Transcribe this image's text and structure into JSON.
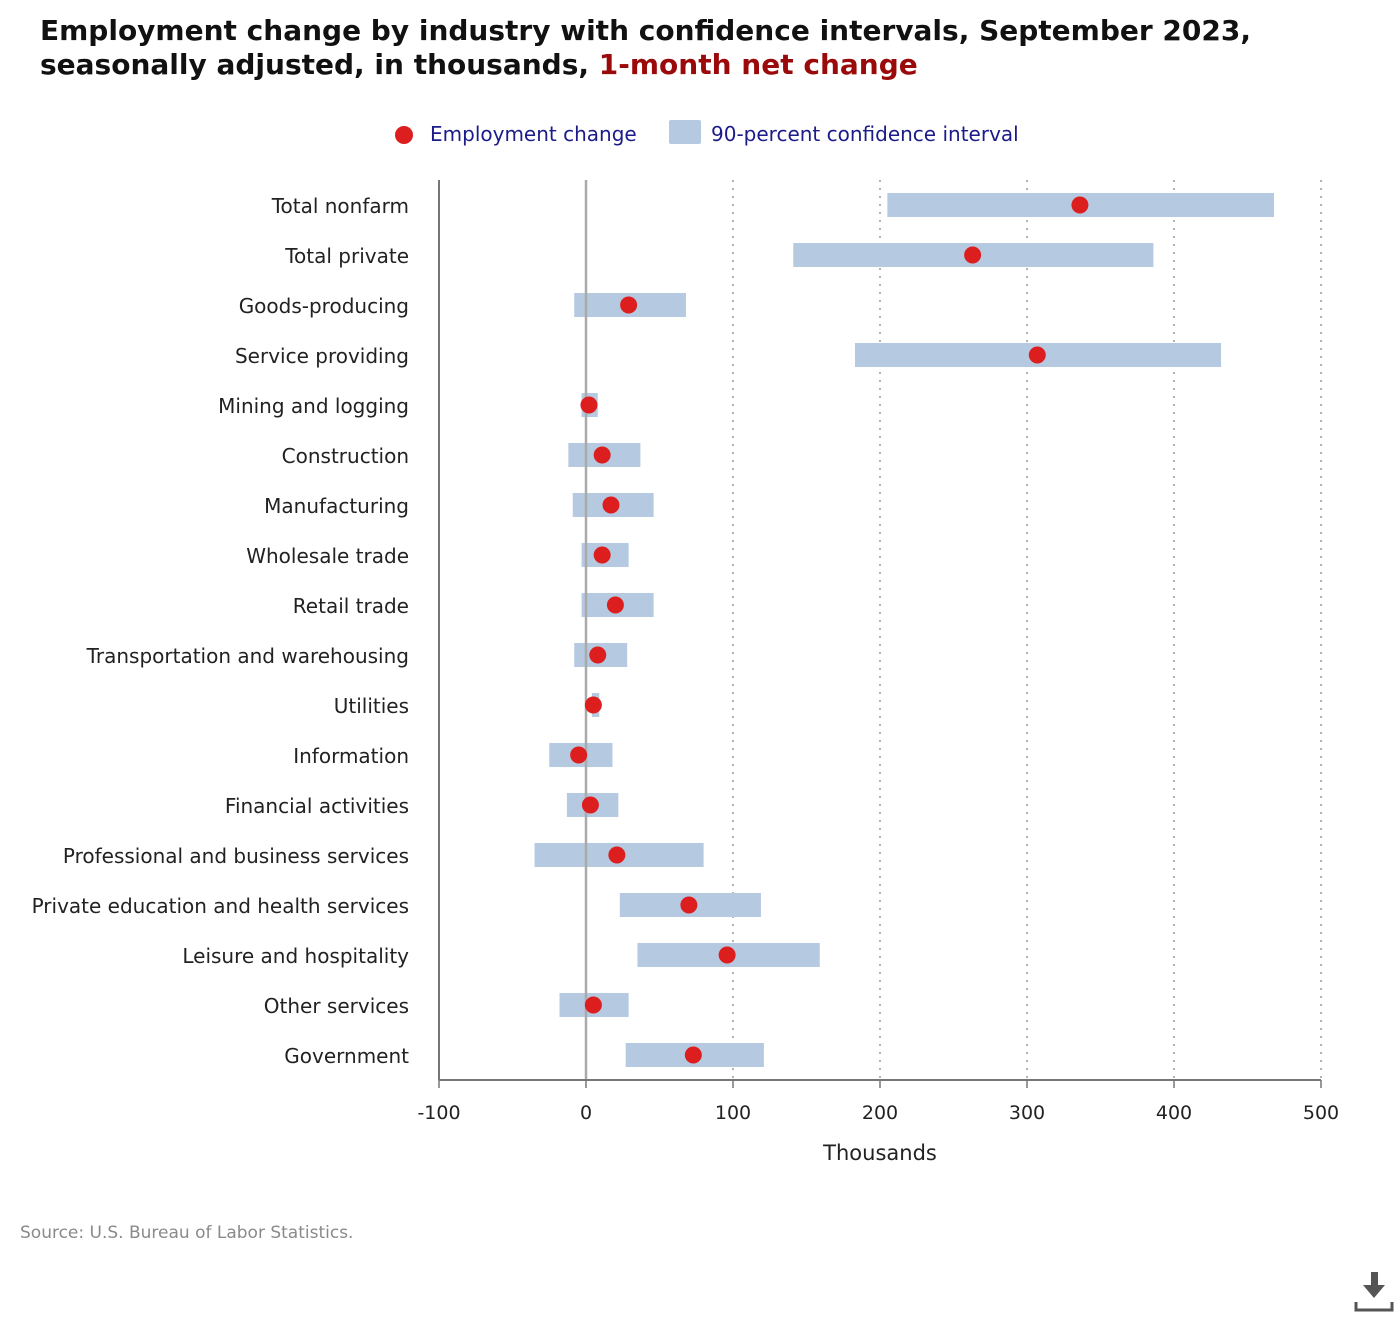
{
  "title": {
    "main": "Employment change by industry with confidence intervals, September 2023, seasonally adjusted, in thousands, ",
    "accent": "1-month net change"
  },
  "legend": {
    "point_label": "Employment change",
    "interval_label": "90-percent confidence interval"
  },
  "source": "Source: U.S. Bureau of Labor Statistics.",
  "colors": {
    "point": "#dd1e1e",
    "interval": "#b5c9e0",
    "accent": "#9b0a0a",
    "legend_text": "#1b1b8a"
  },
  "chart_data": {
    "type": "scatter",
    "title": "Employment change by industry with confidence intervals, September 2023, seasonally adjusted, in thousands, 1-month net change",
    "xlabel": "Thousands",
    "ylabel": "",
    "xlim": [
      -100,
      500
    ],
    "xticks": [
      "-100",
      "0",
      "100",
      "200",
      "300",
      "400",
      "500"
    ],
    "grid": "vertical dotted",
    "legend_position": "top-center",
    "categories": [
      "Total nonfarm",
      "Total private",
      "Goods-producing",
      "Service providing",
      "Mining and logging",
      "Construction",
      "Manufacturing",
      "Wholesale trade",
      "Retail trade",
      "Transportation and warehousing",
      "Utilities",
      "Information",
      "Financial activities",
      "Professional and business services",
      "Private education and health services",
      "Leisure and hospitality",
      "Other services",
      "Government"
    ],
    "series": [
      {
        "name": "Employment change",
        "values": [
          336,
          263,
          29,
          307,
          2,
          11,
          17,
          11,
          20,
          8,
          5,
          -5,
          3,
          21,
          70,
          96,
          5,
          73
        ]
      },
      {
        "name": "90-percent confidence interval",
        "low": [
          205,
          141,
          -8,
          183,
          -3,
          -12,
          -9,
          -3,
          -3,
          -8,
          4,
          -25,
          -13,
          -35,
          23,
          35,
          -18,
          27
        ],
        "high": [
          468,
          386,
          68,
          432,
          8,
          37,
          46,
          29,
          46,
          28,
          9,
          18,
          22,
          80,
          119,
          159,
          29,
          121
        ]
      }
    ]
  }
}
